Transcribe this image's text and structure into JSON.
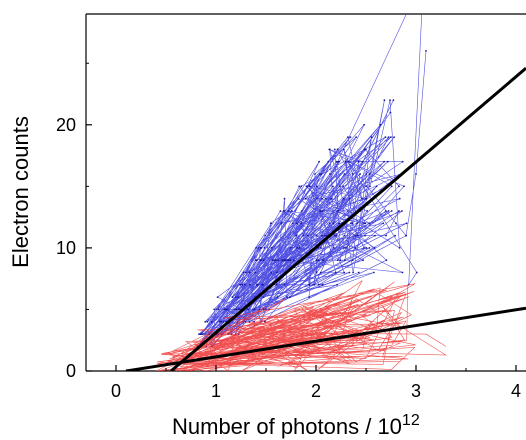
{
  "chart_data": {
    "type": "line",
    "xlabel": "Number of photons / 10",
    "xlabel_superscript": "12",
    "ylabel": "Electron counts",
    "xlim": [
      -0.3,
      4.1
    ],
    "ylim": [
      0,
      29
    ],
    "x_ticks": [
      0,
      1,
      2,
      3,
      4
    ],
    "y_ticks": [
      0,
      10,
      20
    ],
    "x_tick_labels": [
      "0",
      "1",
      "2",
      "3",
      "4"
    ],
    "y_tick_labels": [
      "0",
      "10",
      "20"
    ],
    "grid": false,
    "series": [
      {
        "style": "noisy-line",
        "color": "#3333dd",
        "markers": true,
        "x_range": [
          0.8,
          3.1
        ],
        "x": [
          0.8,
          0.9,
          1.0,
          1.1,
          1.2,
          1.3,
          1.4,
          1.5,
          1.6,
          1.7,
          1.8,
          1.9,
          2.0,
          2.1,
          2.2,
          2.3,
          2.4,
          2.5,
          2.6,
          2.7,
          2.8,
          2.9,
          3.0,
          3.1
        ],
        "y": [
          2,
          3,
          4,
          4,
          5,
          6,
          7,
          8,
          9,
          10,
          10,
          11,
          12,
          12,
          13,
          13,
          14,
          14,
          15,
          15,
          16,
          12,
          11,
          26
        ]
      },
      {
        "style": "noisy-line",
        "color": "#ee3333",
        "markers": false,
        "x_range": [
          0.4,
          3.3
        ],
        "x": [
          0.4,
          0.6,
          0.8,
          1.0,
          1.2,
          1.4,
          1.6,
          1.8,
          2.0,
          2.2,
          2.4,
          2.6,
          2.8,
          3.0,
          3.2,
          3.3
        ],
        "y": [
          1,
          0.5,
          1.5,
          2,
          2,
          2.5,
          3,
          3,
          3,
          3.5,
          3.5,
          4,
          4,
          4,
          3,
          2
        ]
      },
      {
        "style": "fit-line",
        "color": "#000000",
        "x": [
          0.55,
          4.1
        ],
        "y": [
          0,
          24.6
        ]
      },
      {
        "style": "fit-line",
        "color": "#000000",
        "x": [
          0.1,
          4.1
        ],
        "y": [
          0,
          5.1
        ]
      }
    ]
  }
}
